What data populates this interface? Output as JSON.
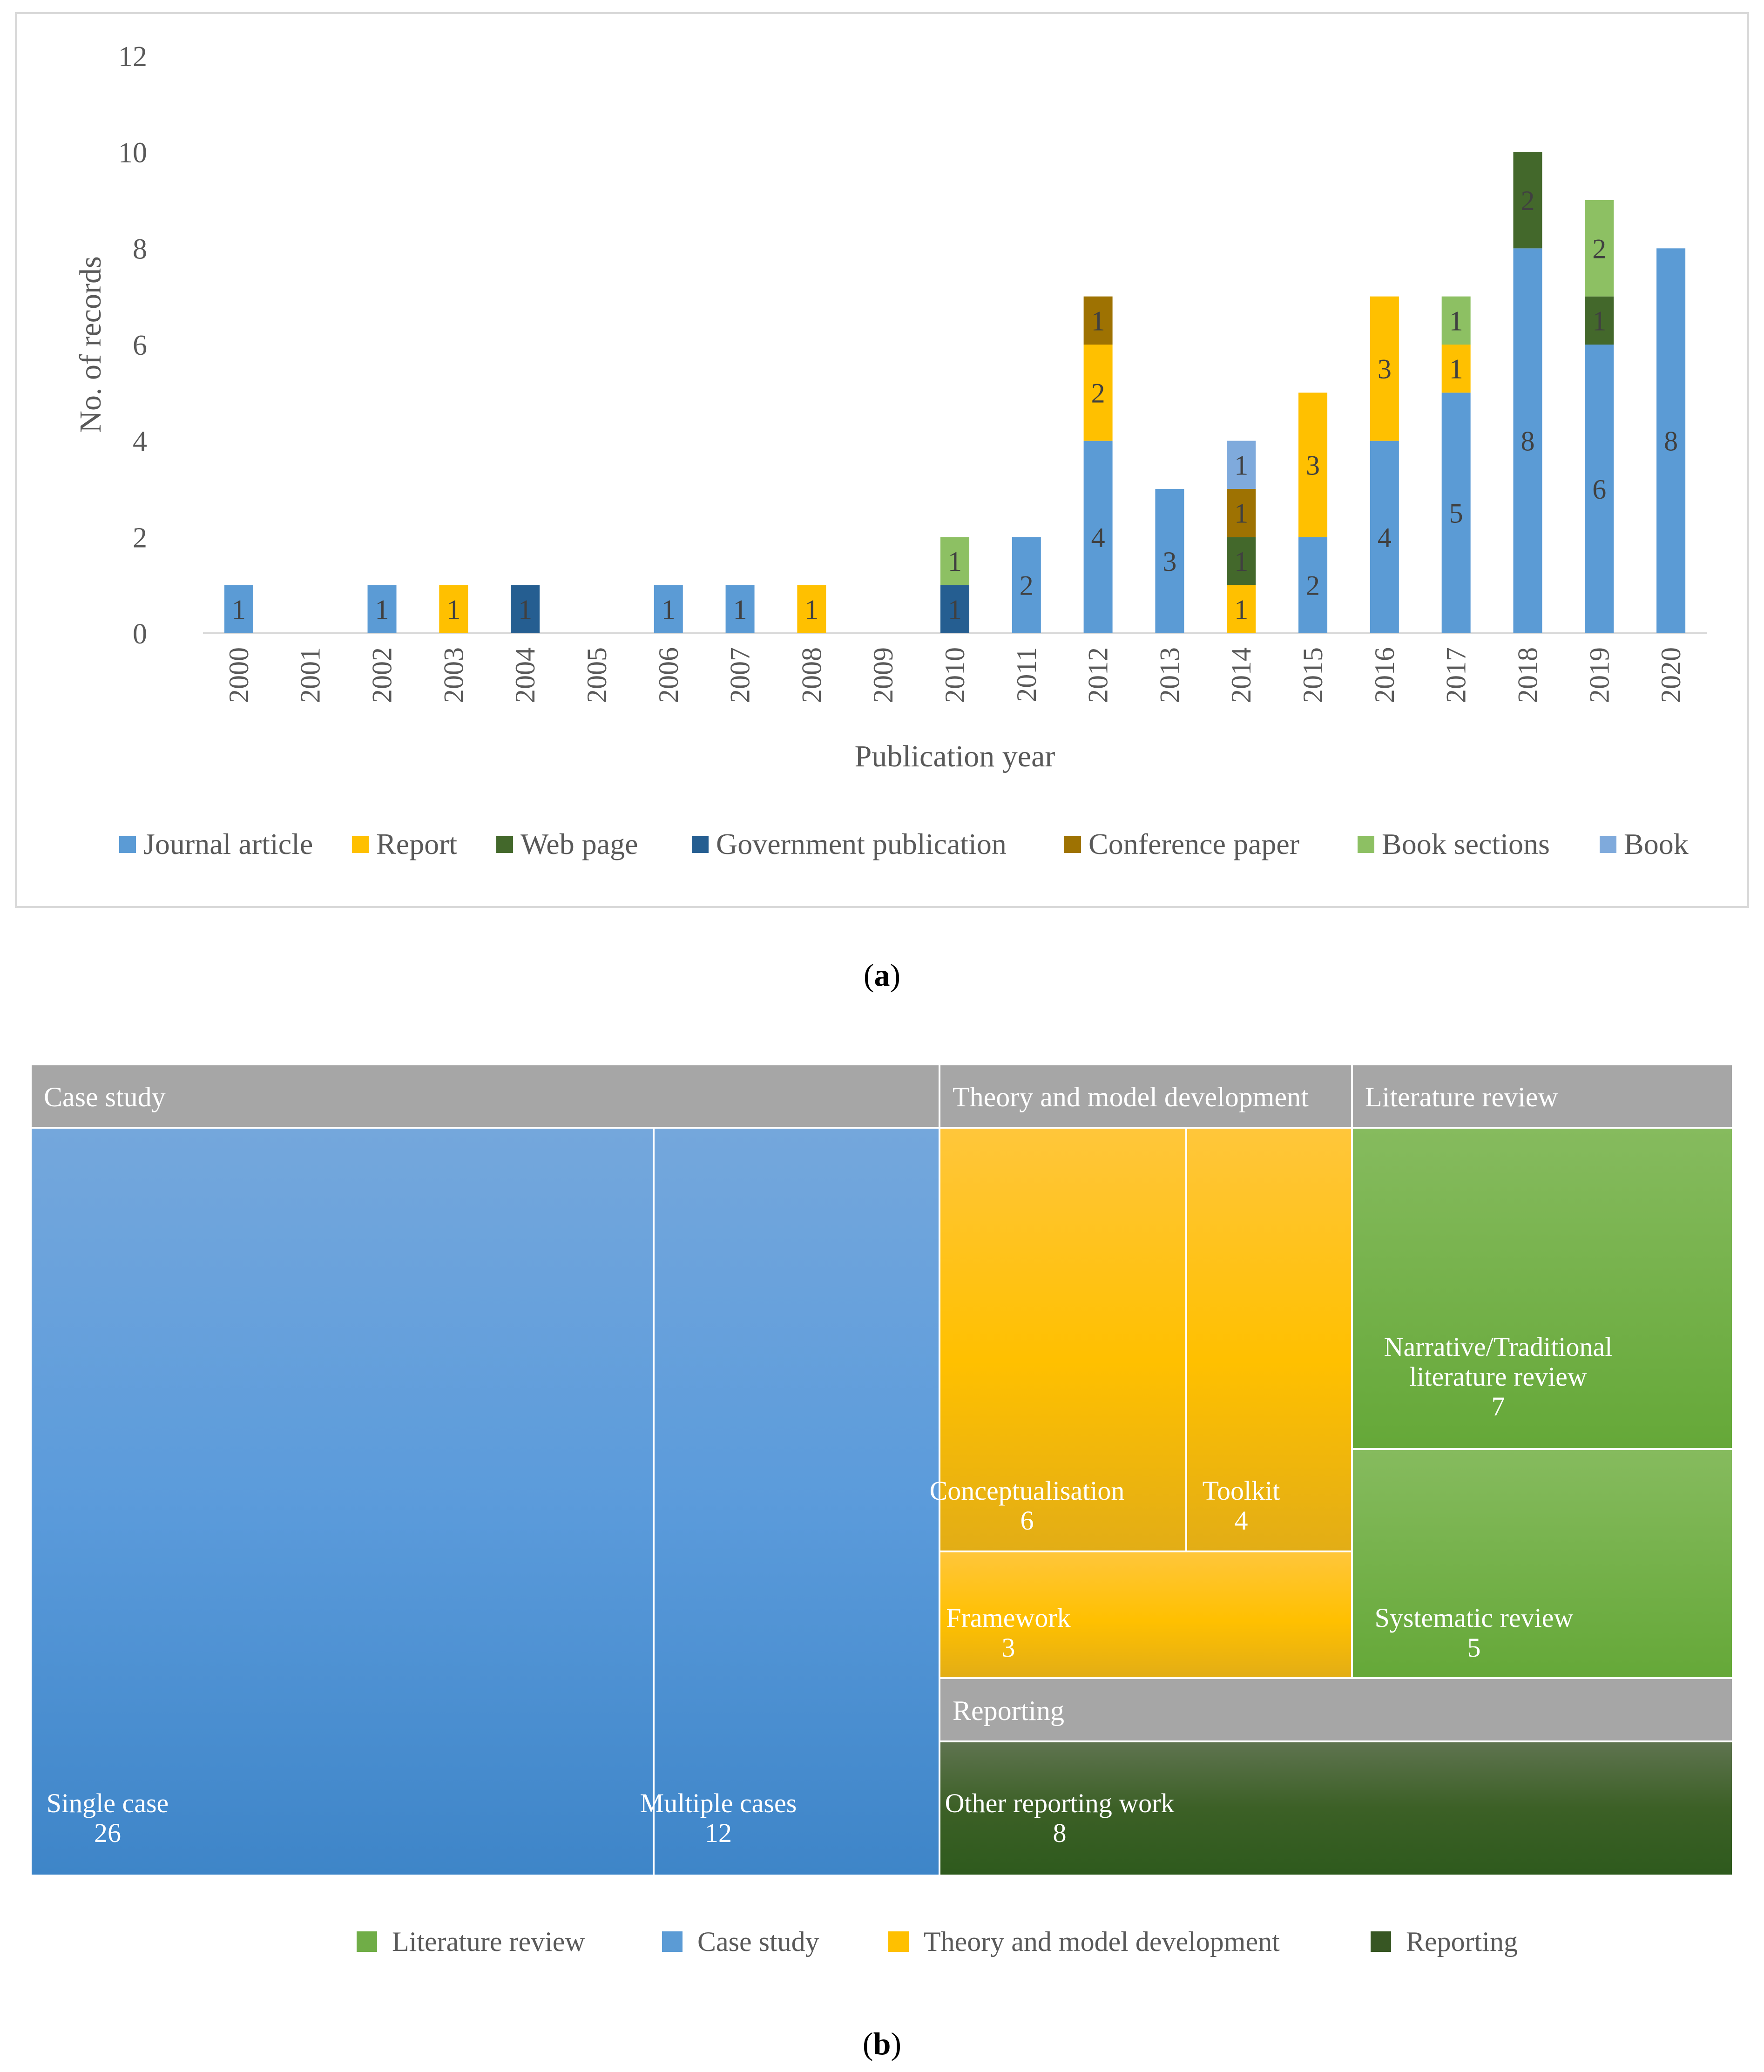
{
  "chart_data": [
    {
      "type": "bar",
      "stacked": true,
      "title": "",
      "xlabel": "Publication year",
      "ylabel": "No. of records",
      "ylim": [
        0,
        12
      ],
      "yticks": [
        0,
        2,
        4,
        6,
        8,
        10,
        12
      ],
      "categories": [
        "2000",
        "2001",
        "2002",
        "2003",
        "2004",
        "2005",
        "2006",
        "2007",
        "2008",
        "2009",
        "2010",
        "2011",
        "2012",
        "2013",
        "2014",
        "2015",
        "2016",
        "2017",
        "2018",
        "2019",
        "2020"
      ],
      "series": [
        {
          "name": "Journal article",
          "color": "#5b9bd5",
          "values": [
            1,
            0,
            1,
            0,
            0,
            0,
            1,
            1,
            0,
            0,
            0,
            2,
            4,
            3,
            0,
            2,
            4,
            5,
            8,
            6,
            8
          ]
        },
        {
          "name": "Report",
          "color": "#ffc000",
          "values": [
            0,
            0,
            0,
            1,
            0,
            0,
            0,
            0,
            1,
            0,
            0,
            0,
            2,
            0,
            1,
            3,
            3,
            1,
            0,
            0,
            0
          ]
        },
        {
          "name": "Web page",
          "color": "#43682b",
          "values": [
            0,
            0,
            0,
            0,
            0,
            0,
            0,
            0,
            0,
            0,
            0,
            0,
            0,
            0,
            1,
            0,
            0,
            0,
            2,
            1,
            0
          ]
        },
        {
          "name": "Government publication",
          "color": "#255e91",
          "values": [
            0,
            0,
            0,
            0,
            1,
            0,
            0,
            0,
            0,
            0,
            1,
            0,
            0,
            0,
            0,
            0,
            0,
            0,
            0,
            0,
            0
          ]
        },
        {
          "name": "Conference paper",
          "color": "#9e7202",
          "values": [
            0,
            0,
            0,
            0,
            0,
            0,
            0,
            0,
            0,
            0,
            0,
            0,
            1,
            0,
            1,
            0,
            0,
            0,
            0,
            0,
            0
          ]
        },
        {
          "name": "Book sections",
          "color": "#8dc063",
          "values": [
            0,
            0,
            0,
            0,
            0,
            0,
            0,
            0,
            0,
            0,
            1,
            0,
            0,
            0,
            0,
            0,
            0,
            1,
            0,
            2,
            0
          ]
        },
        {
          "name": "Book",
          "color": "#7faadc",
          "values": [
            0,
            0,
            0,
            0,
            0,
            0,
            0,
            0,
            0,
            0,
            0,
            0,
            0,
            0,
            1,
            0,
            0,
            0,
            0,
            0,
            0
          ]
        }
      ],
      "legend": "bottom",
      "caption": {
        "label": "a"
      }
    },
    {
      "type": "treemap",
      "groups": [
        {
          "name": "Case study",
          "color": "#5b9bd5",
          "children": [
            {
              "name": "Single case",
              "value": 26
            },
            {
              "name": "Multiple cases",
              "value": 12
            }
          ]
        },
        {
          "name": "Theory and model development",
          "color": "#ffc000",
          "children": [
            {
              "name": "Conceptualisation",
              "value": 6
            },
            {
              "name": "Toolkit",
              "value": 4
            },
            {
              "name": "Framework",
              "value": 3
            }
          ]
        },
        {
          "name": "Literature review",
          "color": "#70ad47",
          "children": [
            {
              "name": "Narrative/Traditional literature review",
              "lines": [
                "Narrative/Traditional",
                "literature review"
              ],
              "value": 7
            },
            {
              "name": "Systematic review",
              "value": 5
            }
          ]
        },
        {
          "name": "Reporting",
          "color": "#375623",
          "children": [
            {
              "name": "Other reporting work",
              "value": 8
            }
          ]
        }
      ],
      "legend": [
        "Literature review",
        "Case study",
        "Theory and model development",
        "Reporting"
      ],
      "legend_colors": [
        "#70ad47",
        "#5b9bd5",
        "#ffc000",
        "#375623"
      ],
      "caption": {
        "label": "b"
      }
    }
  ]
}
